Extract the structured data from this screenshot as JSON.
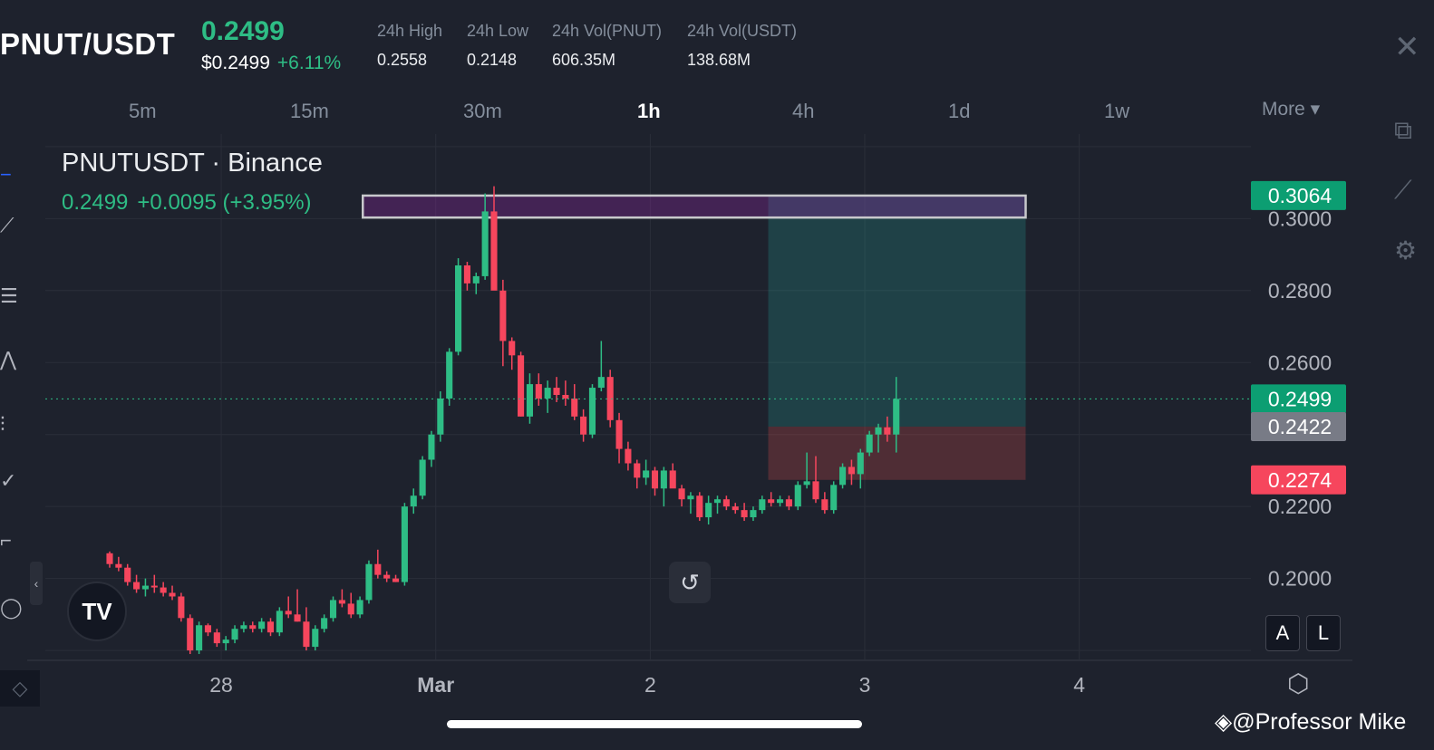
{
  "header": {
    "pair": "PNUT/USDT",
    "last_price": "0.2499",
    "usd_price": "$0.2499",
    "change_pct": "+6.11%",
    "stats": [
      {
        "label": "24h High",
        "value": "0.2558"
      },
      {
        "label": "24h Low",
        "value": "0.2148"
      },
      {
        "label": "24h Vol(PNUT)",
        "value": "606.35M"
      },
      {
        "label": "24h Vol(USDT)",
        "value": "138.68M"
      }
    ],
    "close_icon": "close-icon"
  },
  "timeframes": [
    "5m",
    "15m",
    "30m",
    "1h",
    "4h",
    "1d",
    "1w"
  ],
  "active_timeframe": "1h",
  "more_label": "More ▾",
  "legend": {
    "title": "PNUTUSDT · Binance",
    "price": "0.2499",
    "change": "+0.0095 (+3.95%)"
  },
  "buttons": {
    "auto": "A",
    "log": "L",
    "reset": "↺",
    "tv_logo": "TV"
  },
  "watermark": "@Professor Mike",
  "colors": {
    "up": "#2ebd85",
    "down": "#f6465d",
    "bg": "#1e222d",
    "grid": "#2a2e39"
  },
  "chart_data": {
    "type": "candlestick",
    "symbol": "PNUTUSDT",
    "exchange": "Binance",
    "interval": "1h",
    "y_ticks": [
      "0.3000",
      "0.2800",
      "0.2600",
      "0.2200",
      "0.2000"
    ],
    "x_ticks": [
      "28",
      "Mar",
      "2",
      "3",
      "4"
    ],
    "ylim": [
      0.1775,
      0.3235
    ],
    "x_day_range": [
      -1.82,
      3.8
    ],
    "price_labels": [
      {
        "value": "0.3064",
        "kind": "take-profit",
        "color": "#0c9e72"
      },
      {
        "value": "0.2499",
        "kind": "last",
        "color": "#0c9e72"
      },
      {
        "value": "0.2422",
        "kind": "entry",
        "color": "#787b86"
      },
      {
        "value": "0.2274",
        "kind": "stop-loss",
        "color": "#f6465d"
      }
    ],
    "position_tool": {
      "type": "long",
      "entry": 0.2422,
      "take_profit": 0.3064,
      "stop_loss": 0.2274,
      "x_start_day": 1.55,
      "x_end_day": 2.75
    },
    "resistance_zone": {
      "low": 0.3003,
      "high": 0.3064,
      "x_start_day": -0.34,
      "x_end_day": 2.75
    },
    "last_price_line": 0.2499,
    "candles_start_day": -1.52,
    "candles": [
      [
        0.207,
        0.2075,
        0.203,
        0.204
      ],
      [
        0.204,
        0.206,
        0.202,
        0.203
      ],
      [
        0.203,
        0.204,
        0.198,
        0.199
      ],
      [
        0.199,
        0.201,
        0.196,
        0.197
      ],
      [
        0.197,
        0.2,
        0.195,
        0.198
      ],
      [
        0.198,
        0.201,
        0.196,
        0.1975
      ],
      [
        0.1975,
        0.199,
        0.195,
        0.196
      ],
      [
        0.196,
        0.198,
        0.194,
        0.195
      ],
      [
        0.195,
        0.196,
        0.188,
        0.189
      ],
      [
        0.189,
        0.19,
        0.179,
        0.18
      ],
      [
        0.18,
        0.188,
        0.179,
        0.187
      ],
      [
        0.187,
        0.1875,
        0.184,
        0.185
      ],
      [
        0.185,
        0.186,
        0.181,
        0.182
      ],
      [
        0.182,
        0.184,
        0.18,
        0.183
      ],
      [
        0.183,
        0.187,
        0.182,
        0.186
      ],
      [
        0.186,
        0.188,
        0.185,
        0.187
      ],
      [
        0.187,
        0.188,
        0.185,
        0.186
      ],
      [
        0.186,
        0.189,
        0.185,
        0.188
      ],
      [
        0.188,
        0.189,
        0.184,
        0.185
      ],
      [
        0.185,
        0.192,
        0.184,
        0.191
      ],
      [
        0.191,
        0.195,
        0.189,
        0.19
      ],
      [
        0.19,
        0.197,
        0.188,
        0.188
      ],
      [
        0.188,
        0.192,
        0.18,
        0.181
      ],
      [
        0.181,
        0.187,
        0.18,
        0.186
      ],
      [
        0.186,
        0.19,
        0.185,
        0.189
      ],
      [
        0.189,
        0.195,
        0.188,
        0.194
      ],
      [
        0.194,
        0.197,
        0.192,
        0.193
      ],
      [
        0.193,
        0.196,
        0.189,
        0.19
      ],
      [
        0.19,
        0.195,
        0.189,
        0.194
      ],
      [
        0.194,
        0.205,
        0.193,
        0.204
      ],
      [
        0.204,
        0.208,
        0.2,
        0.201
      ],
      [
        0.201,
        0.202,
        0.199,
        0.2
      ],
      [
        0.2,
        0.201,
        0.199,
        0.199
      ],
      [
        0.199,
        0.221,
        0.198,
        0.22
      ],
      [
        0.22,
        0.225,
        0.218,
        0.223
      ],
      [
        0.223,
        0.234,
        0.222,
        0.233
      ],
      [
        0.233,
        0.241,
        0.231,
        0.24
      ],
      [
        0.24,
        0.252,
        0.238,
        0.25
      ],
      [
        0.25,
        0.264,
        0.248,
        0.263
      ],
      [
        0.263,
        0.289,
        0.262,
        0.287
      ],
      [
        0.287,
        0.288,
        0.28,
        0.282
      ],
      [
        0.282,
        0.285,
        0.279,
        0.284
      ],
      [
        0.284,
        0.307,
        0.283,
        0.302
      ],
      [
        0.302,
        0.309,
        0.281,
        0.28
      ],
      [
        0.28,
        0.283,
        0.259,
        0.266
      ],
      [
        0.266,
        0.267,
        0.258,
        0.262
      ],
      [
        0.262,
        0.263,
        0.245,
        0.245
      ],
      [
        0.245,
        0.257,
        0.243,
        0.254
      ],
      [
        0.254,
        0.257,
        0.248,
        0.25
      ],
      [
        0.25,
        0.255,
        0.246,
        0.253
      ],
      [
        0.253,
        0.256,
        0.249,
        0.251
      ],
      [
        0.251,
        0.255,
        0.248,
        0.25
      ],
      [
        0.25,
        0.254,
        0.244,
        0.245
      ],
      [
        0.245,
        0.247,
        0.238,
        0.24
      ],
      [
        0.24,
        0.254,
        0.239,
        0.253
      ],
      [
        0.253,
        0.266,
        0.252,
        0.256
      ],
      [
        0.256,
        0.258,
        0.242,
        0.244
      ],
      [
        0.244,
        0.246,
        0.232,
        0.236
      ],
      [
        0.236,
        0.238,
        0.23,
        0.232
      ],
      [
        0.232,
        0.233,
        0.225,
        0.228
      ],
      [
        0.228,
        0.233,
        0.226,
        0.23
      ],
      [
        0.23,
        0.231,
        0.223,
        0.225
      ],
      [
        0.225,
        0.231,
        0.22,
        0.23
      ],
      [
        0.23,
        0.232,
        0.226,
        0.225
      ],
      [
        0.225,
        0.226,
        0.22,
        0.222
      ],
      [
        0.222,
        0.224,
        0.218,
        0.223
      ],
      [
        0.223,
        0.224,
        0.216,
        0.217
      ],
      [
        0.217,
        0.223,
        0.215,
        0.221
      ],
      [
        0.221,
        0.223,
        0.218,
        0.222
      ],
      [
        0.222,
        0.223,
        0.219,
        0.22
      ],
      [
        0.22,
        0.221,
        0.218,
        0.219
      ],
      [
        0.219,
        0.221,
        0.216,
        0.217
      ],
      [
        0.217,
        0.22,
        0.216,
        0.219
      ],
      [
        0.219,
        0.223,
        0.218,
        0.222
      ],
      [
        0.222,
        0.224,
        0.22,
        0.221
      ],
      [
        0.221,
        0.223,
        0.22,
        0.222
      ],
      [
        0.222,
        0.223,
        0.219,
        0.22
      ],
      [
        0.22,
        0.227,
        0.219,
        0.226
      ],
      [
        0.226,
        0.235,
        0.225,
        0.227
      ],
      [
        0.227,
        0.234,
        0.221,
        0.222
      ],
      [
        0.222,
        0.224,
        0.218,
        0.219
      ],
      [
        0.219,
        0.227,
        0.218,
        0.226
      ],
      [
        0.226,
        0.232,
        0.225,
        0.231
      ],
      [
        0.231,
        0.233,
        0.226,
        0.229
      ],
      [
        0.229,
        0.236,
        0.225,
        0.235
      ],
      [
        0.235,
        0.241,
        0.234,
        0.24
      ],
      [
        0.24,
        0.243,
        0.235,
        0.242
      ],
      [
        0.242,
        0.245,
        0.238,
        0.24
      ],
      [
        0.24,
        0.256,
        0.235,
        0.2499
      ]
    ]
  }
}
